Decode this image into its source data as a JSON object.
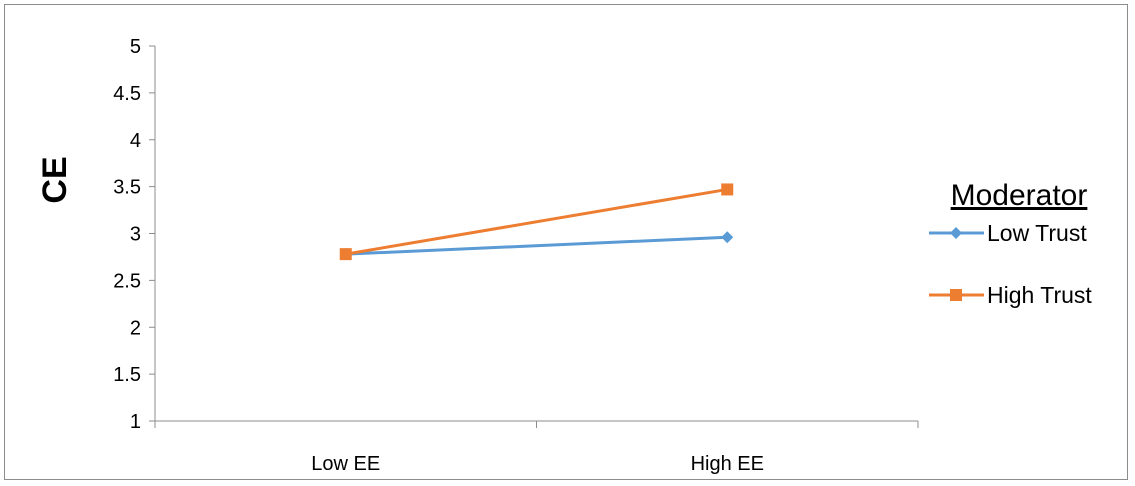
{
  "chart_data": {
    "type": "line",
    "title": "",
    "xlabel": "",
    "ylabel": "CE",
    "categories": [
      "Low EE",
      "High EE"
    ],
    "ylim": [
      1,
      5
    ],
    "yticks": [
      1,
      1.5,
      2,
      2.5,
      3,
      3.5,
      4,
      4.5,
      5
    ],
    "ytick_labels": [
      "1",
      "1.5",
      "2",
      "2.5",
      "3",
      "3.5",
      "4",
      "4.5",
      "5"
    ],
    "grid": false,
    "legend": {
      "title": "Moderator",
      "placement": "right"
    },
    "series": [
      {
        "name": "Low Trust",
        "values": [
          2.78,
          2.96
        ],
        "color": "#5b9bd5",
        "marker": "diamond"
      },
      {
        "name": "High Trust",
        "values": [
          2.78,
          3.47
        ],
        "color": "#ed7d31",
        "marker": "square"
      }
    ]
  }
}
